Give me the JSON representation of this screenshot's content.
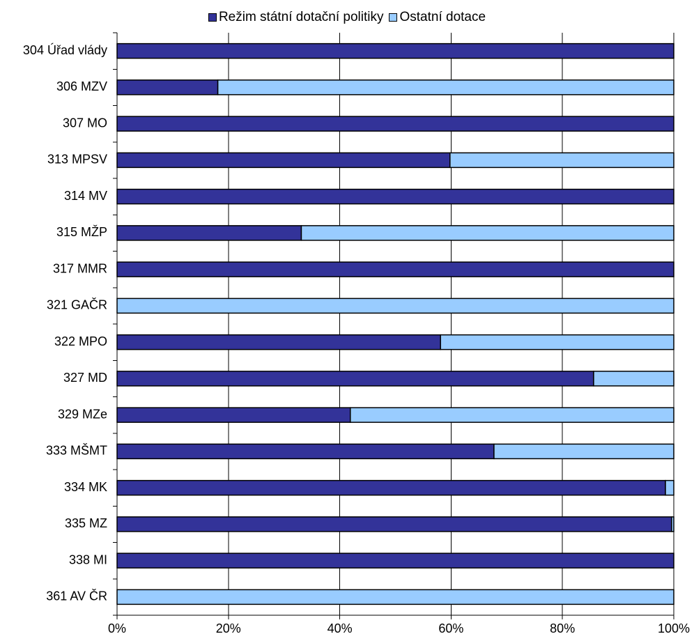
{
  "chart_data": {
    "type": "bar",
    "orientation": "horizontal",
    "stacked": true,
    "percent_stacked": true,
    "categories": [
      "304 Úřad vlády",
      "306 MZV",
      "307 MO",
      "313 MPSV",
      "314 MV",
      "315 MŽP",
      "317 MMR",
      "321 GAČR",
      "322 MPO",
      "327 MD",
      "329 MZe",
      "333 MŠMT",
      "334 MK",
      "335 MZ",
      "338 MI",
      "361 AV ČR"
    ],
    "series": [
      {
        "name": "Režim státní dotační politiky",
        "color": "#333399",
        "values": [
          100,
          18.1,
          100,
          59.8,
          100,
          33.1,
          100,
          0,
          58.1,
          85.6,
          41.9,
          67.7,
          98.5,
          99.6,
          100,
          0
        ]
      },
      {
        "name": "Ostatní dotace",
        "color": "#99CCFF",
        "values": [
          0,
          81.9,
          0,
          40.2,
          0,
          66.9,
          0,
          100,
          41.9,
          14.4,
          58.1,
          32.3,
          1.5,
          0.4,
          0,
          100
        ]
      }
    ],
    "x_tick_labels": [
      "0%",
      "20%",
      "40%",
      "60%",
      "80%",
      "100%"
    ],
    "xlim": [
      0,
      100
    ],
    "grid": true,
    "legend_position": "top"
  }
}
